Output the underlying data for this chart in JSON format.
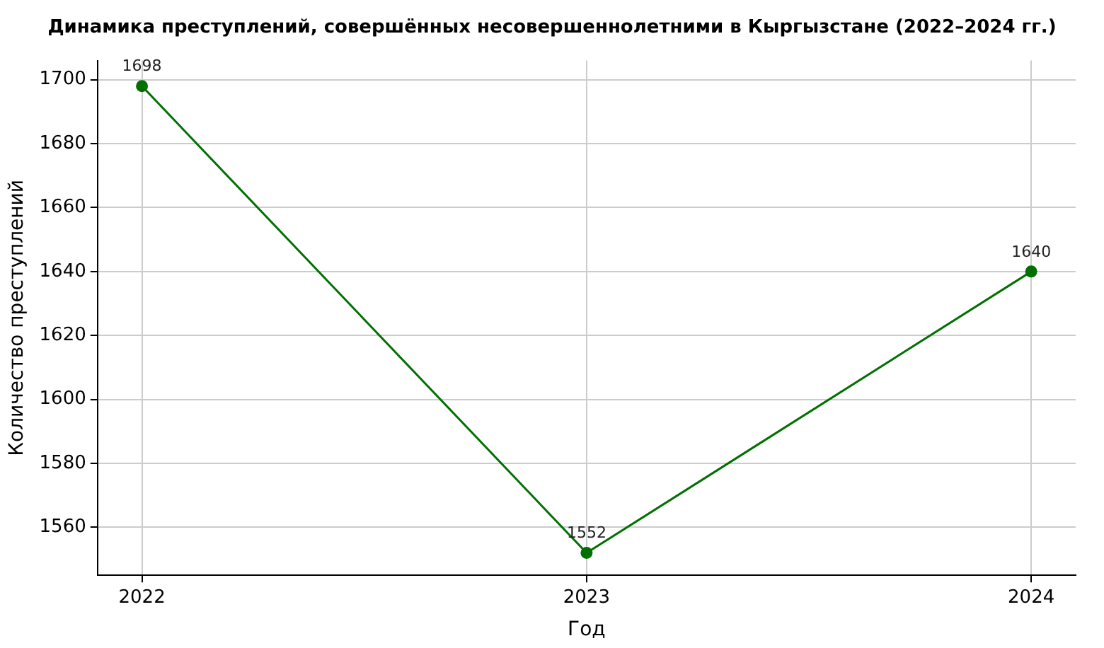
{
  "chart_data": {
    "type": "line",
    "title": "Динамика преступлений, совершённых несовершеннолетними в Кыргызстане (2022–2024 гг.)",
    "xlabel": "Год",
    "ylabel": "Количество преступлений",
    "x": [
      2022,
      2023,
      2024
    ],
    "series": [
      {
        "color": "#007000",
        "values": [
          1698,
          1552,
          1640
        ]
      }
    ],
    "xlim": [
      2021.9,
      2024.1
    ],
    "xticks": [
      2022,
      2023,
      2024
    ],
    "ylim": [
      1545,
      1706
    ],
    "yticks": [
      1560,
      1580,
      1600,
      1620,
      1640,
      1660,
      1680,
      1700
    ],
    "grid": true,
    "marker": "circle",
    "line_style": "solid",
    "data_labels": true,
    "legend": false
  }
}
